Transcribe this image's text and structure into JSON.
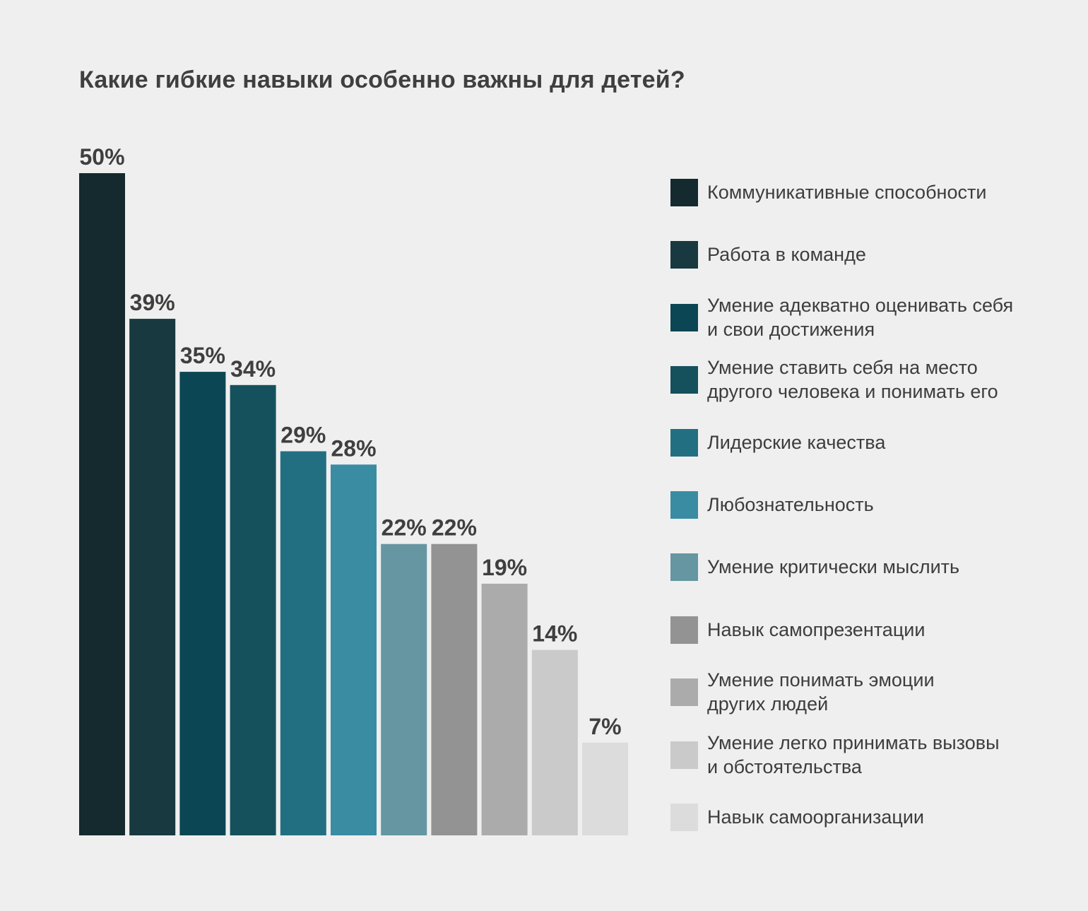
{
  "chart_data": {
    "type": "bar",
    "title": "Какие гибкие навыки особенно важны для детей?",
    "xlabel": "",
    "ylabel": "",
    "ylim": [
      0,
      50
    ],
    "grid": false,
    "legend_position": "right",
    "categories": [
      "Коммуникативные способности",
      "Работа в команде",
      "Умение адекватно оценивать себя\nи свои достижения",
      "Умение ставить себя на место\nдругого человека и понимать его",
      "Лидерские качества",
      "Любознательность",
      "Умение критически мыслить",
      "Навык самопрезентации",
      "Умение понимать эмоции\nдругих людей",
      "Умение легко принимать вызовы\nи обстоятельства",
      "Навык самоорганизации"
    ],
    "values": [
      50,
      39,
      35,
      34,
      29,
      28,
      22,
      22,
      19,
      14,
      7
    ],
    "value_labels": [
      "50%",
      "39%",
      "35%",
      "34%",
      "29%",
      "28%",
      "22%",
      "22%",
      "19%",
      "14%",
      "7%"
    ],
    "colors": [
      "#142a2f",
      "#17393f",
      "#0b4654",
      "#15505d",
      "#236f82",
      "#3a8ca3",
      "#6596a2",
      "#929392",
      "#ababab",
      "#cacaca",
      "#dcdcdc"
    ]
  }
}
